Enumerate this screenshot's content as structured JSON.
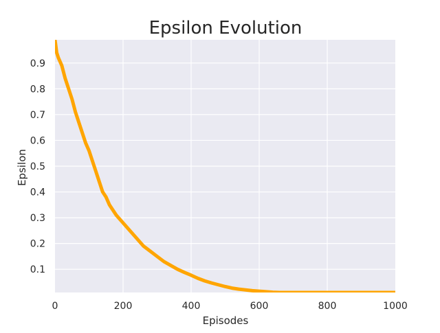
{
  "chart_data": {
    "type": "line",
    "title": "Epsilon Evolution",
    "xlabel": "Episodes",
    "ylabel": "Epsilon",
    "xlim": [
      0,
      1000
    ],
    "ylim": [
      0.01,
      0.99
    ],
    "xticks": [
      0,
      200,
      400,
      600,
      800,
      1000
    ],
    "yticks": [
      0.1,
      0.2,
      0.3,
      0.4,
      0.5,
      0.6,
      0.7,
      0.8,
      0.9
    ],
    "xtick_labels": [
      "0",
      "200",
      "400",
      "600",
      "800",
      "1000"
    ],
    "ytick_labels": [
      "0.1",
      "0.2",
      "0.3",
      "0.4",
      "0.5",
      "0.6",
      "0.7",
      "0.8",
      "0.9"
    ],
    "grid": true,
    "background": "#eaeaf2",
    "grid_color": "#ffffff",
    "series": [
      {
        "color": "#ffa500",
        "x": [
          0,
          5,
          10,
          20,
          30,
          40,
          50,
          60,
          70,
          80,
          90,
          100,
          110,
          120,
          130,
          140,
          150,
          160,
          170,
          180,
          200,
          220,
          240,
          260,
          280,
          300,
          320,
          340,
          360,
          380,
          400,
          420,
          440,
          460,
          480,
          500,
          520,
          540,
          560,
          580,
          600,
          620,
          640,
          660,
          700,
          800,
          900,
          1000
        ],
        "y": [
          0.99,
          0.94,
          0.92,
          0.89,
          0.84,
          0.8,
          0.76,
          0.71,
          0.67,
          0.63,
          0.59,
          0.56,
          0.52,
          0.48,
          0.44,
          0.4,
          0.38,
          0.35,
          0.33,
          0.31,
          0.28,
          0.25,
          0.22,
          0.19,
          0.17,
          0.15,
          0.13,
          0.115,
          0.1,
          0.088,
          0.077,
          0.065,
          0.055,
          0.047,
          0.04,
          0.033,
          0.027,
          0.023,
          0.02,
          0.017,
          0.015,
          0.013,
          0.011,
          0.01,
          0.01,
          0.01,
          0.01,
          0.01
        ]
      }
    ]
  }
}
